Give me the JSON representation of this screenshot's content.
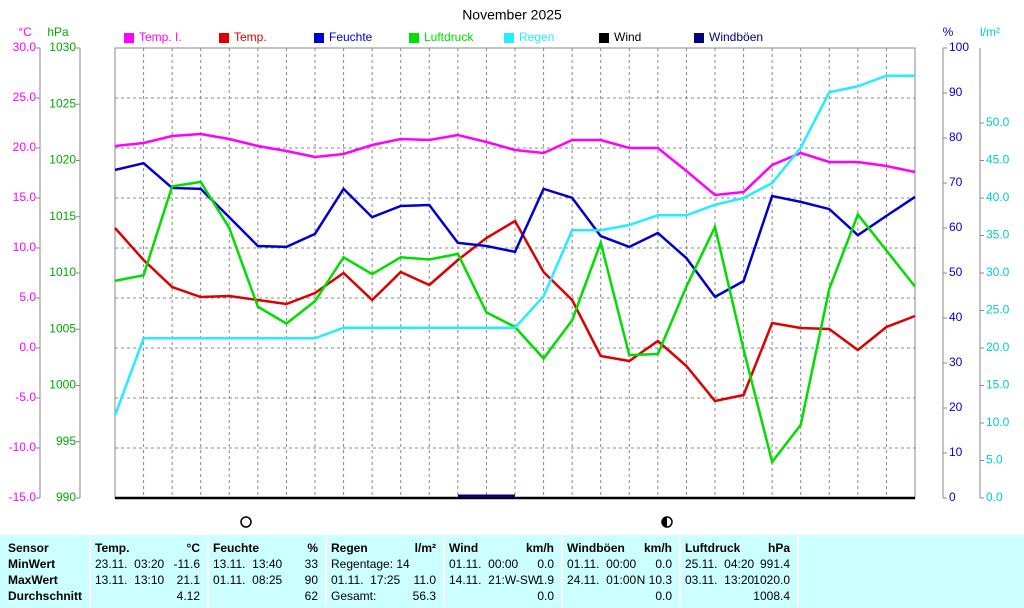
{
  "chart_data": {
    "type": "line",
    "title": "November 2025",
    "ylabel": "°C",
    "y2label": "hPa",
    "y3label": "%",
    "y4label": "l/m²",
    "categories": [
      null,
      null,
      null,
      null,
      null,
      null,
      null,
      null,
      null,
      null,
      null,
      null,
      null,
      null,
      null,
      null,
      null,
      null,
      null,
      null,
      null,
      null,
      null,
      null,
      null,
      null,
      null,
      null,
      null
    ],
    "ylim": [
      -15,
      30
    ],
    "yticks": [
      {
        "value": 30,
        "label": "30.0"
      },
      {
        "value": 25,
        "label": "25.0"
      },
      {
        "value": 20,
        "label": "20.0"
      },
      {
        "value": 15,
        "label": "15.0"
      },
      {
        "value": 10,
        "label": "10.0"
      },
      {
        "value": 5,
        "label": "5.0"
      },
      {
        "value": 0,
        "label": "0.0"
      },
      {
        "value": -5,
        "label": "-5.0"
      },
      {
        "value": -10,
        "label": "-10.0"
      },
      {
        "value": -15,
        "label": "-15.0"
      }
    ],
    "y2lim": [
      990,
      1030
    ],
    "y2ticks": [
      1030,
      1025,
      1020,
      1015,
      1010,
      1005,
      1000,
      995,
      990
    ],
    "y3lim": [
      0,
      100
    ],
    "y3ticks": [
      100,
      90,
      80,
      70,
      60,
      50,
      40,
      30,
      20,
      10,
      0
    ],
    "y4lim": [
      0,
      60
    ],
    "y4ticks": [
      {
        "value": 50,
        "label": "50.0"
      },
      {
        "value": 45,
        "label": "45.0"
      },
      {
        "value": 40,
        "label": "40.0"
      },
      {
        "value": 35,
        "label": "35.0"
      },
      {
        "value": 30,
        "label": "30.0"
      },
      {
        "value": 25,
        "label": "25.0"
      },
      {
        "value": 20,
        "label": "20.0"
      },
      {
        "value": 15,
        "label": "15.0"
      },
      {
        "value": 10,
        "label": "10.0"
      },
      {
        "value": 5,
        "label": "5.0"
      },
      {
        "value": 0,
        "label": "0.0"
      }
    ],
    "grid": true,
    "series": [
      {
        "name": "Temp. I.",
        "color": "#ff00ff",
        "axis": "y",
        "values": [
          20.2,
          20.5,
          21.2,
          21.4,
          20.9,
          20.2,
          19.7,
          19.1,
          19.4,
          20.3,
          20.9,
          20.8,
          21.3,
          20.6,
          19.8,
          19.5,
          20.8,
          20.8,
          20.0,
          20.0,
          17.7,
          15.3,
          15.6,
          18.3,
          19.5,
          18.6,
          18.6,
          18.2,
          17.6
        ]
      },
      {
        "name": "Temp.",
        "color": "#dd0000",
        "axis": "y",
        "values": [
          12.0,
          8.8,
          6.1,
          5.1,
          5.2,
          4.8,
          4.4,
          5.5,
          7.5,
          4.8,
          7.6,
          6.3,
          8.8,
          11.0,
          12.7,
          7.6,
          4.8,
          -0.8,
          -1.3,
          0.7,
          -1.8,
          -5.3,
          -4.7,
          2.5,
          2.0,
          1.9,
          -0.2,
          2.1,
          3.2
        ]
      },
      {
        "name": "Feuchte",
        "color": "#0000cc",
        "axis": "y3",
        "values": [
          72.9,
          74.4,
          68.9,
          68.7,
          62.4,
          56.0,
          55.8,
          58.7,
          68.7,
          62.4,
          64.9,
          65.1,
          56.7,
          56.0,
          54.7,
          68.7,
          66.7,
          58.2,
          55.8,
          58.9,
          53.3,
          44.7,
          48.2,
          67.1,
          65.8,
          64.2,
          58.4,
          62.7,
          66.9
        ]
      },
      {
        "name": "Luftdruck",
        "color": "#00dd00",
        "axis": "y2",
        "values": [
          1009.3,
          1009.8,
          1017.7,
          1018.1,
          1014.0,
          1007.0,
          1005.5,
          1007.5,
          1011.4,
          1009.9,
          1011.4,
          1011.2,
          1011.7,
          1006.5,
          1005.2,
          1002.4,
          1005.8,
          1012.7,
          1002.7,
          1002.8,
          1008.8,
          1014.1,
          1003.2,
          993.2,
          996.5,
          1008.6,
          1015.2,
          1012.0,
          1008.8
        ]
      },
      {
        "name": "Regen",
        "color": "#22eeff",
        "axis": "y4",
        "values": [
          11.0,
          21.3,
          21.3,
          21.3,
          21.3,
          21.3,
          21.3,
          21.3,
          22.7,
          22.7,
          22.7,
          22.7,
          22.7,
          22.7,
          22.7,
          26.9,
          35.7,
          35.7,
          36.4,
          37.7,
          37.7,
          39.1,
          40.0,
          42.0,
          46.7,
          54.1,
          54.9,
          56.3,
          56.3
        ]
      },
      {
        "name": "Wind",
        "color": "#000000",
        "axis": "y4",
        "values": [
          0,
          0,
          0,
          0,
          0,
          0,
          0,
          0,
          0,
          0,
          0,
          0,
          0,
          0,
          0,
          0,
          0,
          0,
          0,
          0,
          0,
          0,
          0,
          0,
          0,
          0,
          0,
          0,
          0
        ]
      },
      {
        "name": "Windböen",
        "color": "#000080",
        "axis": "y4",
        "values": [
          null,
          null,
          null,
          null,
          null,
          null,
          null,
          null,
          null,
          null,
          null,
          null,
          0.3,
          0.3,
          0.3,
          null,
          null,
          null,
          null,
          null,
          null,
          null,
          null,
          null,
          null,
          null,
          null,
          null,
          null
        ]
      }
    ]
  },
  "table": {
    "sensor_header": "Sensor",
    "row_labels": [
      "MinWert",
      "MaxWert",
      "Durchschnitt"
    ],
    "columns": [
      {
        "name": "Temp.",
        "unit": "°C",
        "rows": [
          [
            "23.11.  03:20",
            "-11.6"
          ],
          [
            "13.11.  13:10",
            "21.1"
          ],
          [
            null,
            "4.12"
          ]
        ]
      },
      {
        "name": "Feuchte",
        "unit": "%",
        "rows": [
          [
            "13.11.  13:40",
            "33"
          ],
          [
            "01.11.  08:25",
            "90"
          ],
          [
            null,
            "62"
          ]
        ]
      },
      {
        "name": "Regen",
        "unit": "l/m²",
        "rows": [
          [
            "Regentage: 14",
            null
          ],
          [
            "01.11.  17:25",
            "11.0"
          ],
          [
            "Gesamt:",
            "56.3"
          ]
        ]
      },
      {
        "name": "Wind",
        "unit": "km/h",
        "rows": [
          [
            "01.11.  00:00",
            "0.0"
          ],
          [
            "14.11.  21:W-SW",
            "1.9"
          ],
          [
            null,
            "0.0"
          ]
        ]
      },
      {
        "name": "Windböen",
        "unit": "km/h",
        "rows": [
          [
            "01.11.  00:00",
            "0.0"
          ],
          [
            "24.11.  01:00",
            "N 10.3"
          ],
          [
            null,
            "0.0"
          ]
        ]
      },
      {
        "name": "Luftdruck",
        "unit": "hPa",
        "rows": [
          [
            "25.11.  04:20",
            "991.4"
          ],
          [
            "03.11.  13:20",
            "1020.0"
          ],
          [
            null,
            "1008.4"
          ]
        ]
      }
    ]
  }
}
